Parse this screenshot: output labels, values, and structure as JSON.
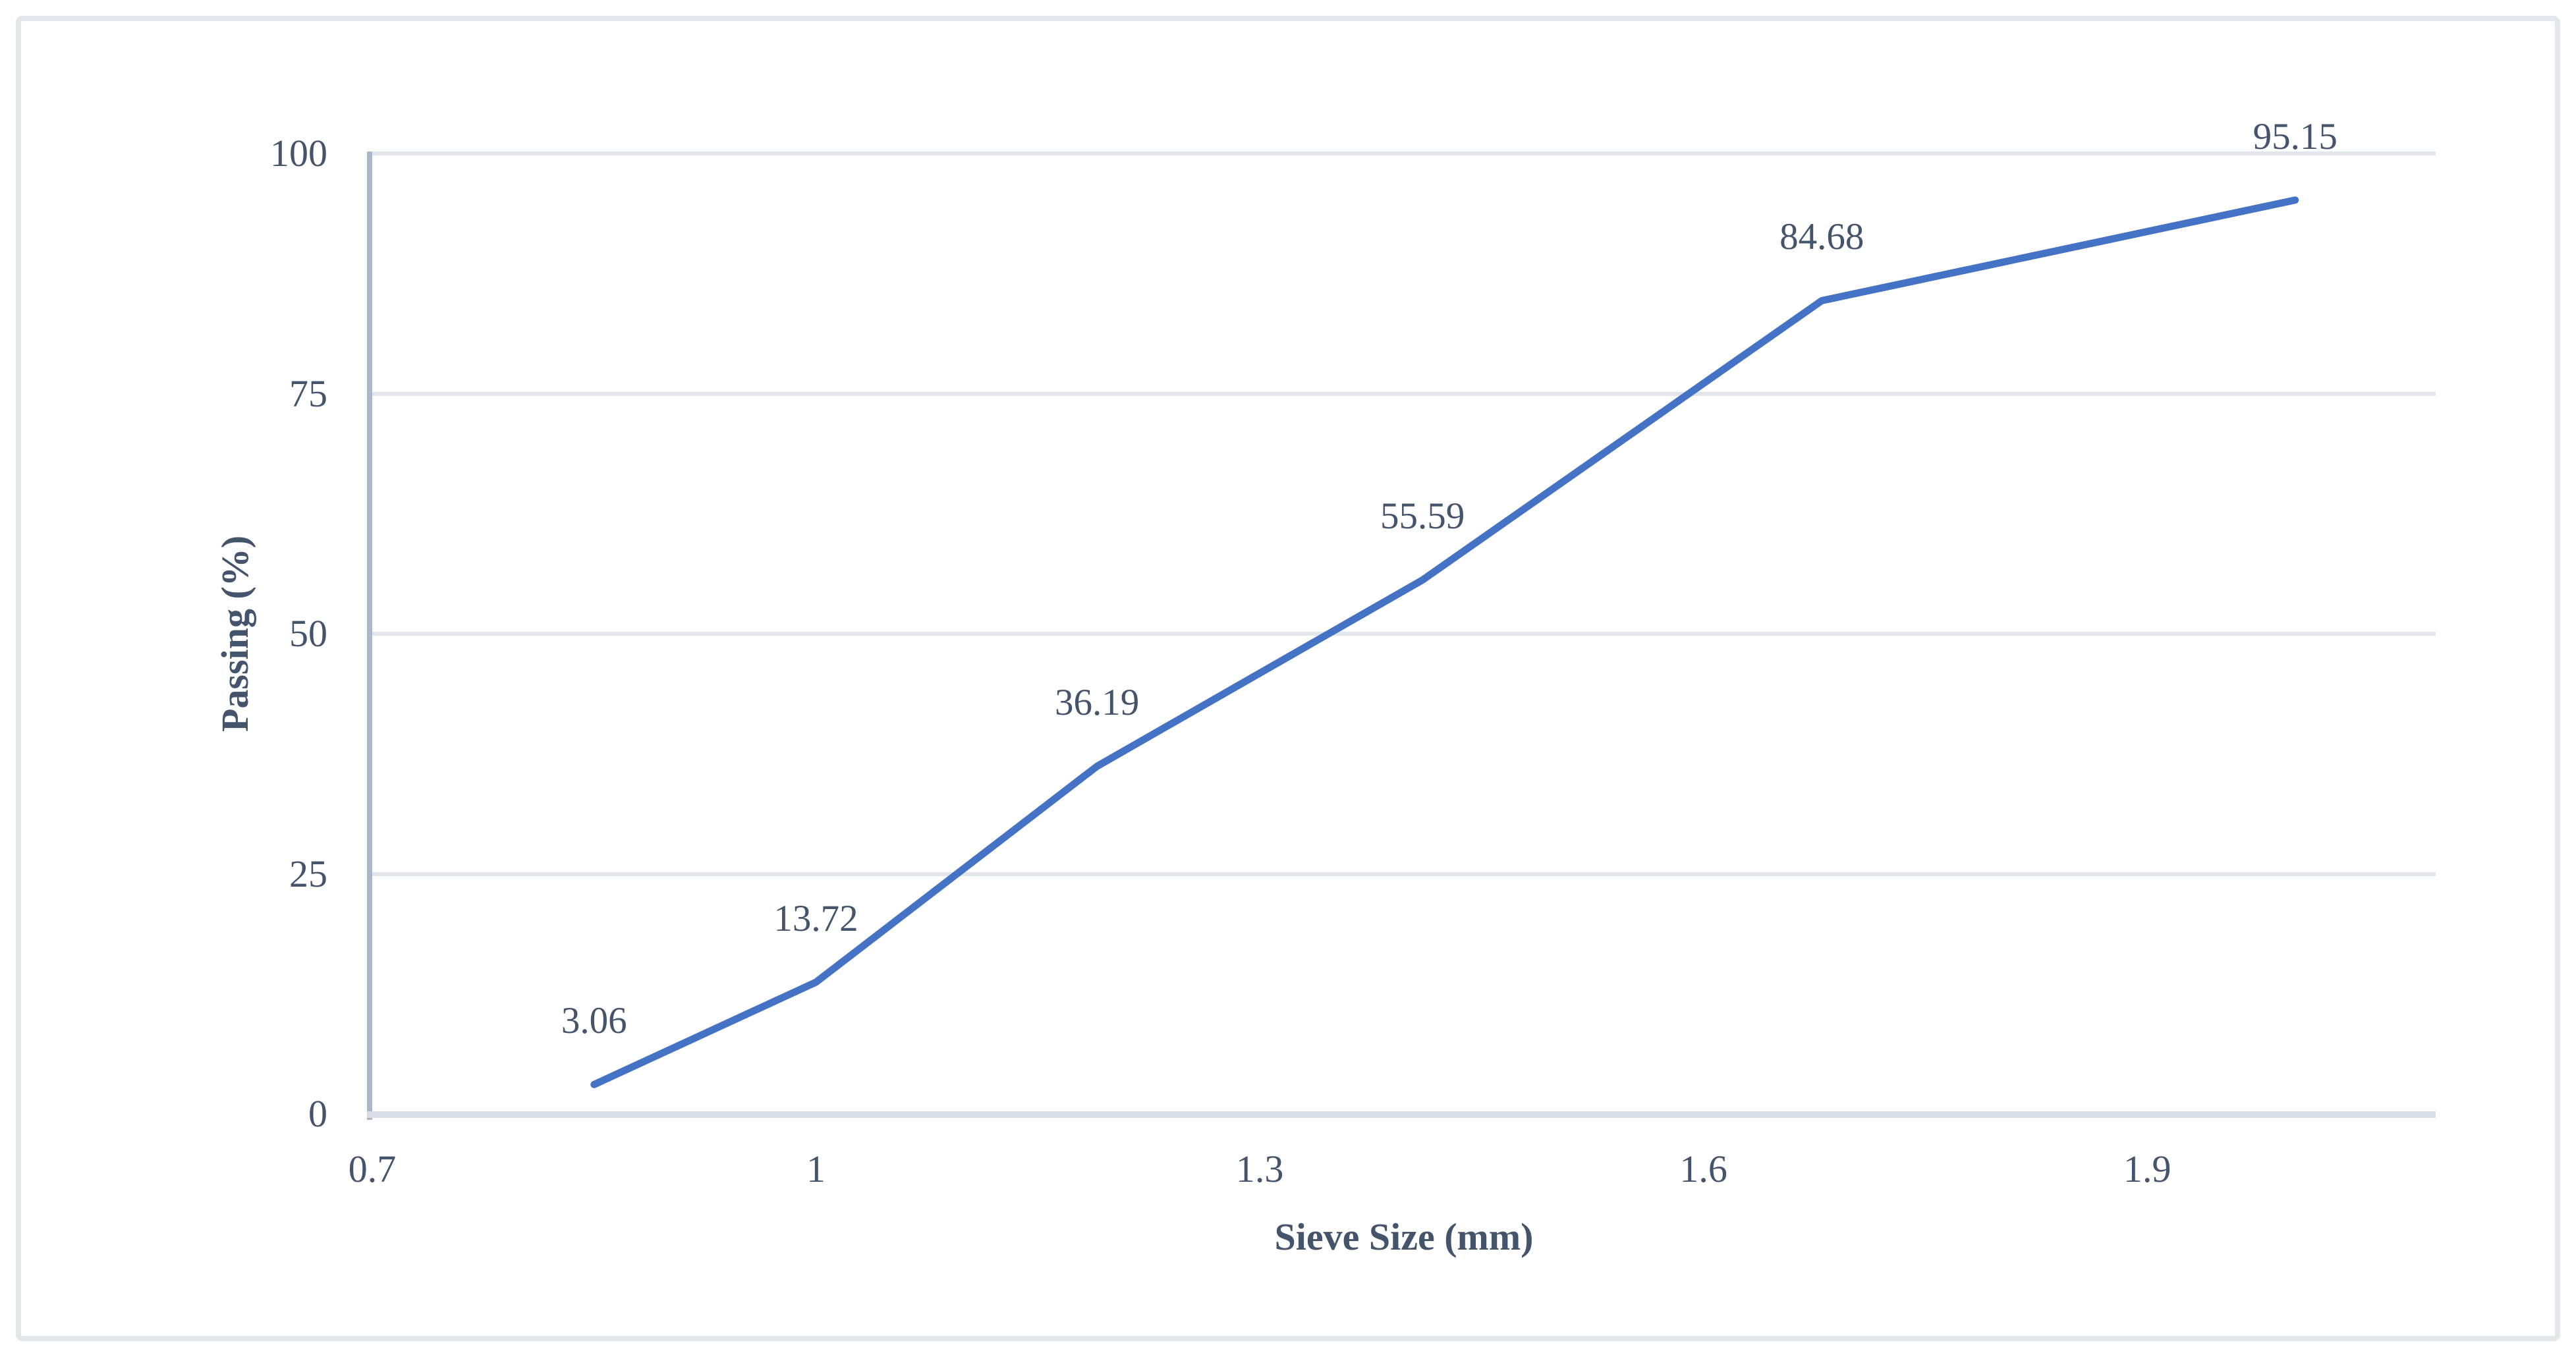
{
  "figure": {
    "background_color": "#FFFFFF",
    "border_color": "#E3E6EA"
  },
  "chart_data": {
    "type": "line",
    "title": "",
    "xlabel": "Sieve Size (mm)",
    "ylabel": "Passing (%)",
    "series": [
      {
        "name": "Passing",
        "color": "#4472C4",
        "line_width": 11,
        "points": [
          {
            "x": 0.85,
            "y": 3.06,
            "label": "3.06"
          },
          {
            "x": 1.0,
            "y": 13.72,
            "label": "13.72"
          },
          {
            "x": 1.19,
            "y": 36.19,
            "label": "36.19"
          },
          {
            "x": 1.41,
            "y": 55.59,
            "label": "55.59"
          },
          {
            "x": 1.68,
            "y": 84.68,
            "label": "84.68"
          },
          {
            "x": 2.0,
            "y": 95.15,
            "label": "95.15"
          }
        ]
      }
    ],
    "x_axis": {
      "min": 0.7,
      "max": 2.095,
      "tick_values": [
        0.7,
        1,
        1.3,
        1.6,
        1.9
      ],
      "tick_labels": [
        "0.7",
        "1",
        "1.3",
        "1.6",
        "1.9"
      ]
    },
    "y_axis": {
      "min": 0,
      "max": 100,
      "tick_values": [
        0,
        25,
        50,
        75,
        100
      ],
      "tick_labels": [
        "0",
        "25",
        "50",
        "75",
        "100"
      ]
    },
    "grid": {
      "horizontal": true,
      "vertical": false,
      "color": "#E1E5EC"
    },
    "axis_lines": {
      "y_color": "#ACB8C9",
      "x_color": "#D8DDE5"
    },
    "text_color": "#44546A",
    "legend": "none",
    "markers": "none"
  }
}
